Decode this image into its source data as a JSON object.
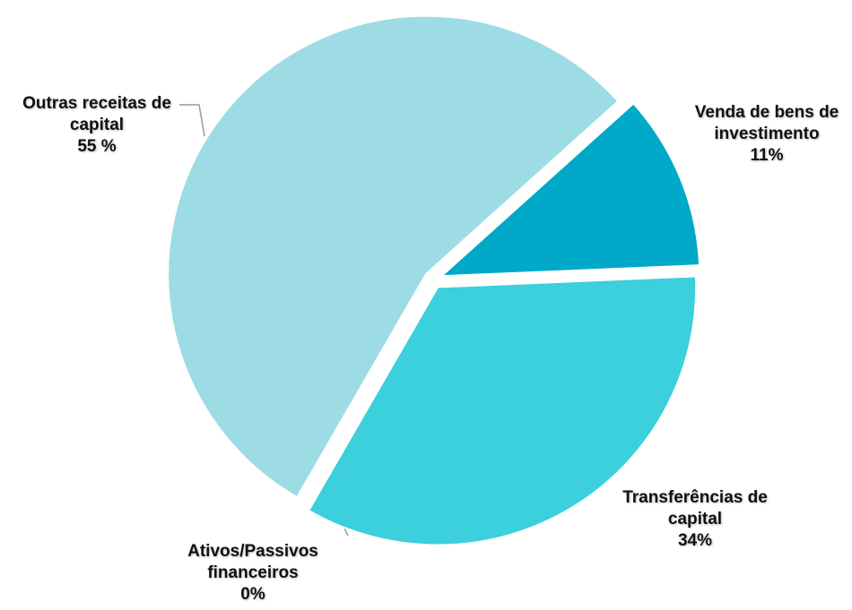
{
  "chart_data": {
    "type": "pie",
    "categories": [
      "Venda de bens de investimento",
      "Transferências de capital",
      "Ativos/Passivos financeiros",
      "Outras receitas de capital"
    ],
    "values": [
      11,
      34,
      0,
      55
    ],
    "value_labels": [
      "11%",
      "34%",
      "0%",
      "55 %"
    ],
    "colors": [
      "#00a9c8",
      "#3ccfdc",
      "#7fd7e0",
      "#9ddce4"
    ]
  }
}
